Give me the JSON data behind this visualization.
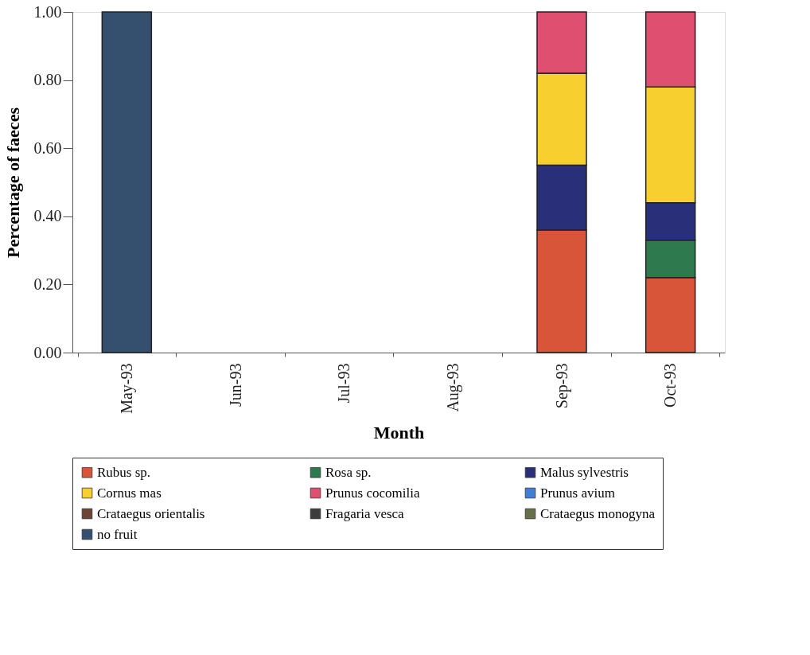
{
  "chart_data": {
    "type": "bar",
    "stacked": true,
    "xlabel": "Month",
    "ylabel": "Percentage of faeces",
    "categories": [
      "May-93",
      "Jun-93",
      "Jul-93",
      "Aug-93",
      "Sep-93",
      "Oct-93"
    ],
    "series": [
      {
        "name": "Rubus sp.",
        "color": "#d9553a",
        "values": [
          null,
          null,
          null,
          null,
          0.36,
          0.22
        ]
      },
      {
        "name": "Rosa sp.",
        "color": "#2e7a4e",
        "values": [
          null,
          null,
          null,
          null,
          null,
          0.11
        ]
      },
      {
        "name": "Malus sylvestris",
        "color": "#2a2f7a",
        "values": [
          null,
          null,
          null,
          null,
          0.19,
          0.11
        ]
      },
      {
        "name": "Cornus mas",
        "color": "#f7d030",
        "values": [
          null,
          null,
          null,
          null,
          0.27,
          0.34
        ]
      },
      {
        "name": "Prunus cocomilia",
        "color": "#de4f70",
        "values": [
          null,
          null,
          null,
          null,
          0.18,
          0.22
        ]
      },
      {
        "name": "Prunus avium",
        "color": "#3f7fd8",
        "values": [
          null,
          null,
          null,
          null,
          null,
          null
        ]
      },
      {
        "name": "Crataegus orientalis",
        "color": "#6b4538",
        "values": [
          null,
          null,
          null,
          null,
          null,
          null
        ]
      },
      {
        "name": "Fragaria vesca",
        "color": "#3d3d3d",
        "values": [
          null,
          null,
          null,
          null,
          null,
          null
        ]
      },
      {
        "name": "Crataegus monogyna",
        "color": "#66704a",
        "values": [
          null,
          null,
          null,
          null,
          null,
          null
        ]
      },
      {
        "name": "no fruit",
        "color": "#34506e",
        "values": [
          1.0,
          null,
          null,
          null,
          null,
          null
        ]
      }
    ],
    "ylim": [
      0,
      1
    ],
    "yticks": [
      {
        "value": 0,
        "label": "0.00"
      },
      {
        "value": 0.2,
        "label": "0.20"
      },
      {
        "value": 0.4,
        "label": "0.40"
      },
      {
        "value": 0.6,
        "label": "0.60"
      },
      {
        "value": 0.8,
        "label": "0.80"
      },
      {
        "value": 1,
        "label": "1.00"
      }
    ],
    "legend": "bottom"
  }
}
